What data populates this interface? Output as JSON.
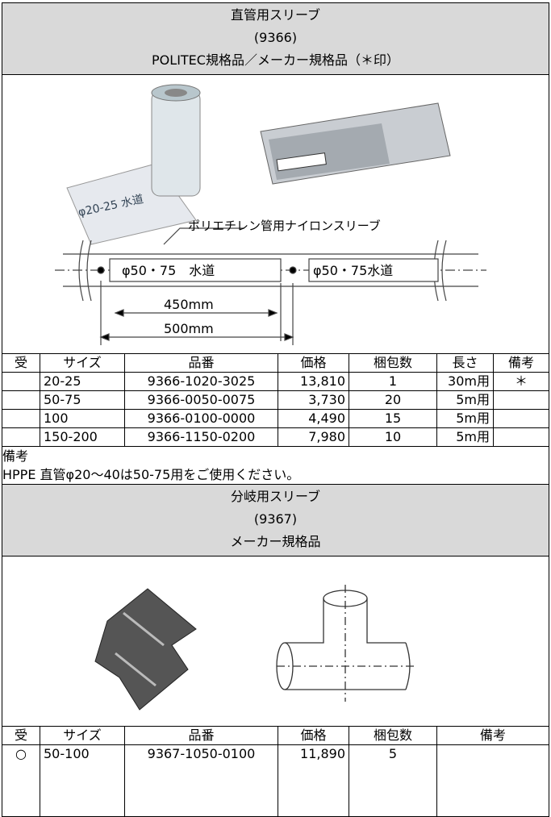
{
  "section1": {
    "title": "直管用スリーブ",
    "code": "(9366)",
    "subtitle": "POLITEC規格品／メーカー規格品（＊印）",
    "diagram": {
      "label": "ポリエチレン管用ナイロンスリーブ",
      "tag_left": "φ50・75　水道",
      "tag_right": "φ50・75水道",
      "dim_inner": "450mm",
      "dim_outer": "500mm"
    },
    "table": {
      "header": {
        "check": "受",
        "size": "サイズ",
        "part": "品番",
        "price": "価格",
        "pack": "梱包数",
        "length": "長さ",
        "note": "備考"
      },
      "rows": [
        {
          "size": "20-25",
          "part": "9366-1020-3025",
          "price": "13,810",
          "pack": "1",
          "length": "30m用",
          "note": "＊"
        },
        {
          "size": "50-75",
          "part": "9366-0050-0075",
          "price": "3,730",
          "pack": "20",
          "length": "5m用"
        },
        {
          "size": "100",
          "part": "9366-0100-0000",
          "price": "4,490",
          "pack": "15",
          "length": "5m用"
        },
        {
          "size": "150-200",
          "part": "9366-1150-0200",
          "price": "7,980",
          "pack": "10",
          "length": "5m用"
        }
      ]
    },
    "note_label": "備考",
    "note": "HPPE 直管φ20～40は50-75用をご使用ください。"
  },
  "section2": {
    "title": "分岐用スリーブ",
    "code": "(9367)",
    "subtitle": "メーカー規格品",
    "table": {
      "header": {
        "check": "受",
        "size": "サイズ",
        "part": "品番",
        "price": "価格",
        "pack": "梱包数",
        "note": "備考"
      },
      "rows": [
        {
          "check": "○",
          "size": "50-100",
          "part": "9367-1050-0100",
          "price": "11,890",
          "pack": "5"
        }
      ]
    }
  }
}
